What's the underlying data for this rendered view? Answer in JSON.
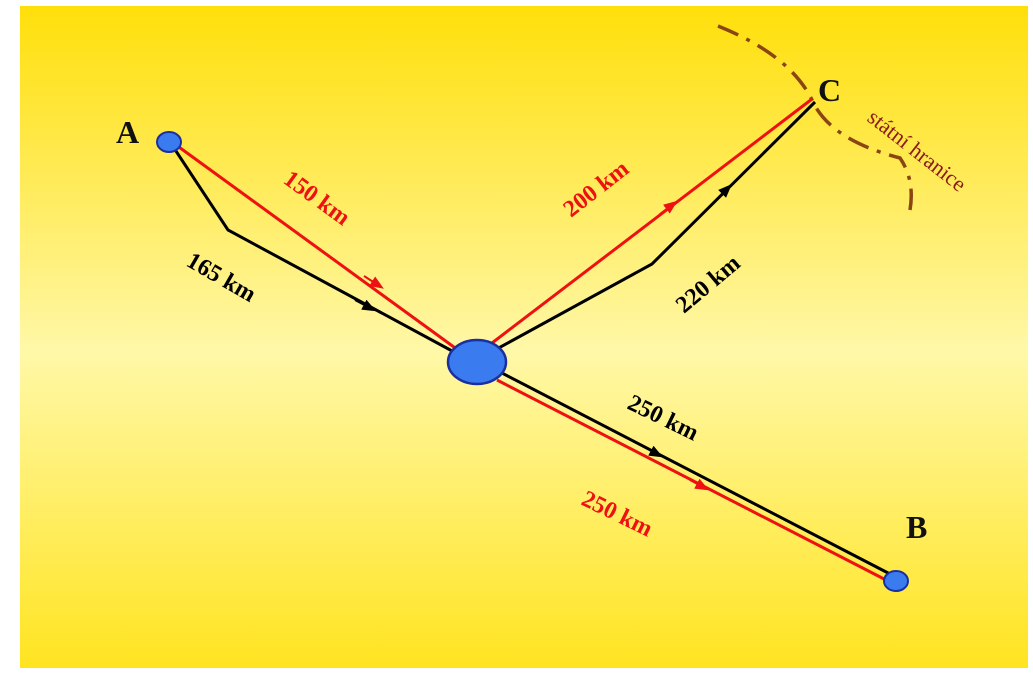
{
  "nodes": {
    "a": "A",
    "b": "B",
    "c": "C"
  },
  "distances": {
    "a_red": "150 km",
    "a_black": "165 km",
    "c_red": "200 km",
    "c_black": "220 km",
    "b_black": "250 km",
    "b_red": "250 km"
  },
  "border_label": "státní hranice",
  "colors": {
    "red_route": "#ee1111",
    "black_route": "#000000",
    "node_fill": "#3a7bf0",
    "node_stroke": "#1a2fa0",
    "border": "#8b4513",
    "background_top": "#ffdf0a",
    "background_mid": "#fff59a"
  }
}
